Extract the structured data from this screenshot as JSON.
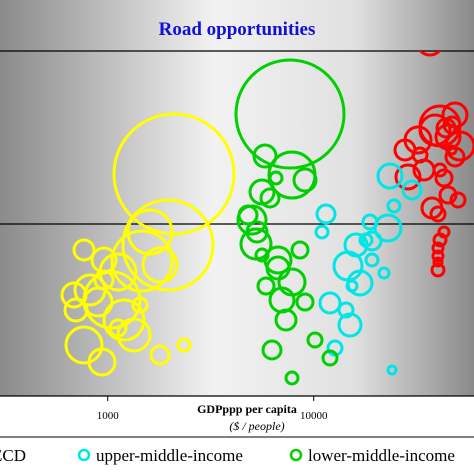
{
  "chart_data": {
    "type": "scatter",
    "title": "Road opportunities",
    "xlabel": "GDPppp per capita",
    "xunit": "($ / people)",
    "xscale": "log",
    "xticks": [
      {
        "value": 1000,
        "label": "1000"
      },
      {
        "value": 10000,
        "label": "10000"
      }
    ],
    "xlim": [
      300,
      60000
    ],
    "colors": {
      "oecd": "#ff0000",
      "upper": "#00e5e5",
      "lower": "#00d000",
      "low": "#ffff00"
    },
    "legend": {
      "placement": "bottom",
      "entries": [
        {
          "key": "oecd",
          "label": "ECD"
        },
        {
          "key": "upper",
          "label": "upper-middle-income"
        },
        {
          "key": "lower",
          "label": "lower-middle-income"
        }
      ]
    },
    "series": [
      {
        "key": "oecd",
        "bubbles": [
          [
            13,
            42,
            0
          ],
          [
            6,
            170,
            0
          ],
          [
            13,
            140,
            0
          ],
          [
            4,
            150,
            0
          ],
          [
            12,
            137,
            0
          ],
          [
            10,
            170,
            0
          ],
          [
            8,
            125,
            0
          ],
          [
            7,
            155,
            0
          ],
          [
            20,
            126,
            0
          ],
          [
            9,
            157,
            0
          ],
          [
            15,
            130,
            0
          ],
          [
            9,
            128,
            0
          ],
          [
            14,
            146,
            0
          ],
          [
            8,
            178,
            0
          ],
          [
            10,
            208,
            0
          ],
          [
            7,
            200,
            0
          ],
          [
            8,
            195,
            0
          ],
          [
            7,
            214,
            0
          ],
          [
            6,
            240,
            0
          ],
          [
            5,
            248,
            0
          ],
          [
            5,
            256,
            0
          ],
          [
            4,
            262,
            0
          ],
          [
            6,
            270,
            0
          ],
          [
            5,
            232,
            0
          ],
          [
            12,
            177,
            0
          ],
          [
            10,
            150,
            0
          ],
          [
            12,
            115,
            0
          ]
        ]
      },
      {
        "key": "upper",
        "bubbles": [
          [
            12,
            176,
            0
          ],
          [
            9,
            190,
            0
          ],
          [
            13,
            228,
            0
          ],
          [
            7,
            222,
            0
          ],
          [
            6,
            206,
            0
          ],
          [
            11,
            245,
            0
          ],
          [
            6,
            260,
            0
          ],
          [
            5,
            273,
            0
          ],
          [
            14,
            266,
            0
          ],
          [
            9,
            241,
            0
          ],
          [
            12,
            283,
            0
          ],
          [
            10,
            303,
            0
          ],
          [
            7,
            310,
            0
          ],
          [
            11,
            325,
            0
          ],
          [
            7,
            348,
            0
          ],
          [
            4,
            370,
            0
          ],
          [
            9,
            214,
            0
          ],
          [
            5,
            286,
            0
          ],
          [
            6,
            240,
            0
          ],
          [
            6,
            232,
            0
          ]
        ]
      },
      {
        "key": "lower",
        "bubbles": [
          [
            54,
            114,
            0
          ],
          [
            23,
            175,
            0
          ],
          [
            11,
            156,
            0
          ],
          [
            6,
            178,
            0
          ],
          [
            12,
            192,
            0
          ],
          [
            14,
            220,
            0
          ],
          [
            9,
            198,
            0
          ],
          [
            15,
            244,
            0
          ],
          [
            11,
            268,
            0
          ],
          [
            13,
            282,
            0
          ],
          [
            8,
            302,
            0
          ],
          [
            10,
            320,
            0
          ],
          [
            9,
            350,
            0
          ],
          [
            6,
            378,
            0
          ],
          [
            13,
            260,
            0
          ],
          [
            10,
            232,
            0
          ],
          [
            8,
            250,
            0
          ],
          [
            12,
            300,
            0
          ],
          [
            9,
            215,
            0
          ],
          [
            7,
            340,
            0
          ],
          [
            6,
            255,
            0
          ],
          [
            11,
            180,
            0
          ],
          [
            8,
            286,
            0
          ],
          [
            7,
            358,
            0
          ]
        ]
      },
      {
        "key": "low",
        "bubbles": [
          [
            60,
            174,
            0
          ],
          [
            45,
            245,
            0
          ],
          [
            30,
            261,
            0
          ],
          [
            12,
            260,
            0
          ],
          [
            22,
            232,
            0
          ],
          [
            28,
            300,
            0
          ],
          [
            18,
            272,
            0
          ],
          [
            15,
            290,
            0
          ],
          [
            20,
            320,
            0
          ],
          [
            18,
            345,
            0
          ],
          [
            13,
            362,
            0
          ],
          [
            11,
            310,
            0
          ],
          [
            9,
            280,
            0
          ],
          [
            16,
            335,
            0
          ],
          [
            9,
            355,
            0
          ],
          [
            6,
            345,
            0
          ],
          [
            14,
            302,
            0
          ],
          [
            10,
            250,
            0
          ],
          [
            17,
            265,
            0
          ],
          [
            8,
            328,
            0
          ],
          [
            12,
            295,
            0
          ],
          [
            7,
            305,
            0
          ]
        ]
      }
    ]
  }
}
